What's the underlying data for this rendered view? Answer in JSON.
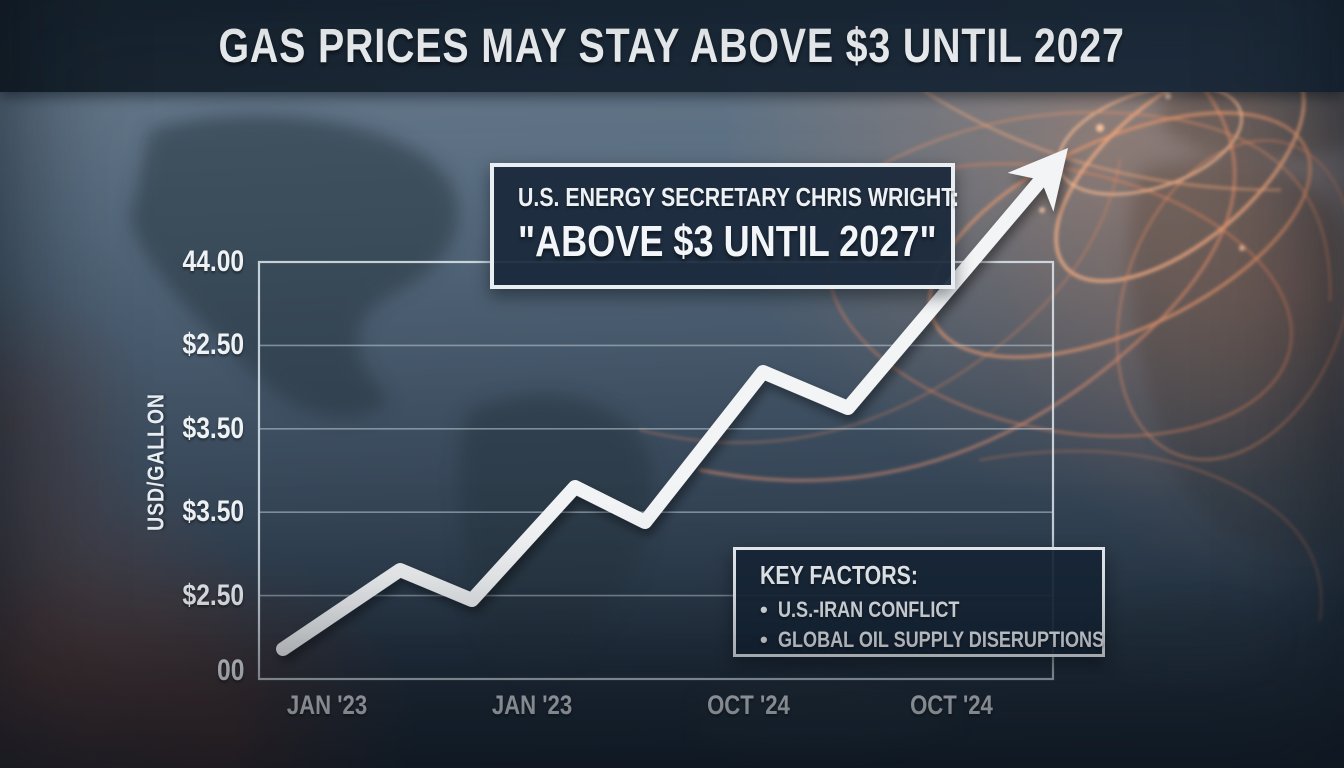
{
  "banner": {
    "title": "GAS PRICES MAY STAY ABOVE $3 UNTIL 2027"
  },
  "quote_box": {
    "line1": "U.S. ENERGY SECRETARY CHRIS WRIGHT:",
    "line2": "\"ABOVE $3 UNTIL 2027\""
  },
  "key_factors_box": {
    "title": "KEY FACTORS:",
    "items": [
      "U.S.-IRAN CONFLICT",
      "GLOBAL OIL SUPPLY DISERUPTIONS"
    ]
  },
  "chart_data": {
    "type": "line",
    "title": "GAS PRICES MAY STAY ABOVE $3 UNTIL 2027",
    "ylabel": "USD/GALLON",
    "xlabel": "",
    "grid": true,
    "legend": "none",
    "y_axis_ticks": [
      "44.00",
      "$2.50",
      "$3.50",
      "$3.50",
      "$2.50",
      "00"
    ],
    "x_axis_ticks": [
      "JAN '23",
      "JAN '23",
      "OCT '24",
      "OCT '24"
    ],
    "series": [
      {
        "name": "gas-price-trend",
        "style": "thick-white-line-with-arrow",
        "points_frac": [
          [
            0.0302,
            0.0719
          ],
          [
            0.1776,
            0.2614
          ],
          [
            0.2682,
            0.1894
          ],
          [
            0.398,
            0.4604
          ],
          [
            0.4861,
            0.3765
          ],
          [
            0.6348,
            0.7362
          ],
          [
            0.7418,
            0.6499
          ],
          [
            1.0189,
            1.2734
          ]
        ]
      }
    ],
    "annotation": "trend line exits top-right of plot as an upward arrow"
  },
  "colors": {
    "banner_bg": "#1b2938",
    "background_top": "#697c8f",
    "background_bottom": "#1d2936",
    "line_color": "#f2f4f6",
    "grid_color": "#a9bac6",
    "box_bg": "#1a293b",
    "box_border": "#e9eef2",
    "accent_orange": "#e8936e",
    "text_color": "#eef2f5"
  }
}
